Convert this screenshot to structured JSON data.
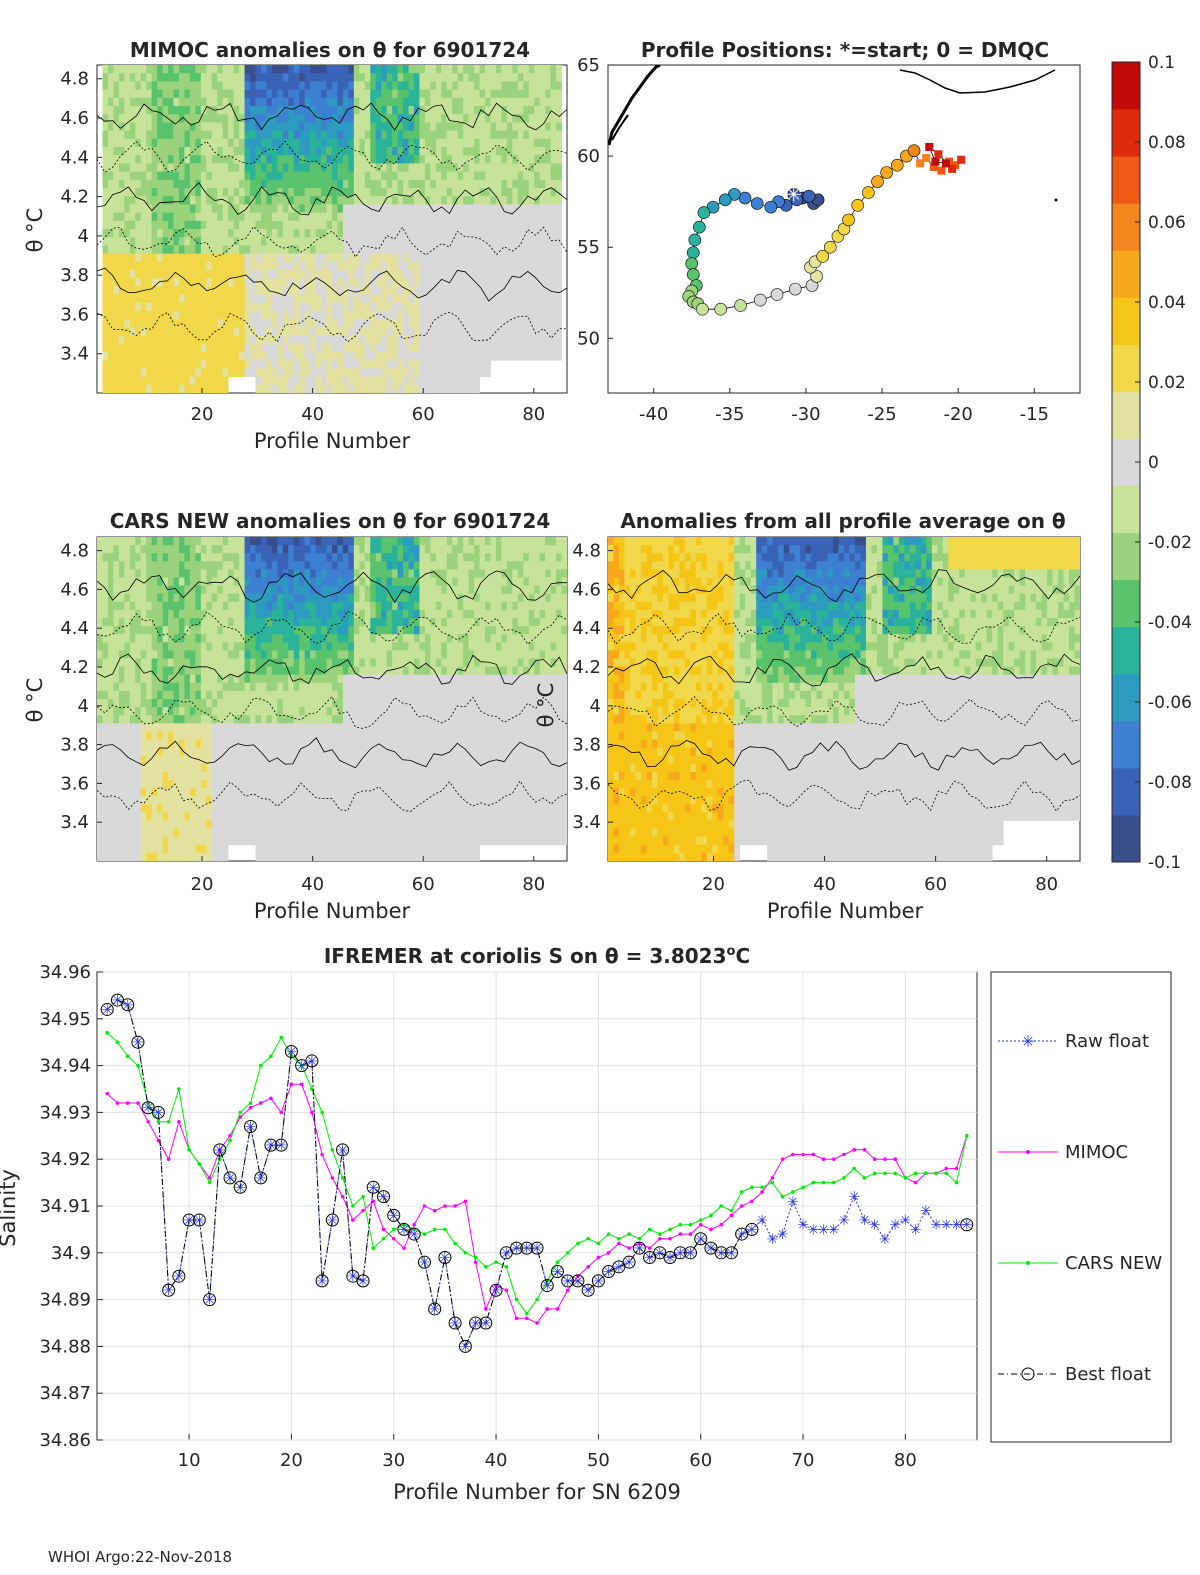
{
  "titles": {
    "p1": "MIMOC anomalies on θ  for 6901724",
    "p2": "Profile Positions: *=start; 0 = DMQC",
    "p3": "CARS NEW anomalies on θ for 6901724",
    "p4": "Anomalies from all profile average on θ",
    "p5_prefix": "IFREMER at coriolis S on θ = 3.8023",
    "p5_suffix": "C"
  },
  "axis_labels": {
    "profile_number": "Profile Number",
    "theta": "θ °C",
    "salinity": "Salinity",
    "profile_number_sn": "Profile Number for SN 6209"
  },
  "footer": "WHOI Argo:22-Nov-2018",
  "colorbar": {
    "ticks": [
      "0.1",
      "0.08",
      "0.06",
      "0.04",
      "0.02",
      "0",
      "-0.02",
      "-0.04",
      "-0.06",
      "-0.08",
      "-0.1"
    ],
    "colors": [
      "#3b4e8c",
      "#3a63b6",
      "#3d7fd0",
      "#2d9bbf",
      "#2bb29a",
      "#59c26d",
      "#9bd27c",
      "#c7e39a",
      "#d9d9d9",
      "#e4e2a0",
      "#f0d84a",
      "#f5c518",
      "#f7a81c",
      "#f5841e",
      "#ee5a14",
      "#de2b0c",
      "#c20a0a"
    ]
  },
  "chart_data": [
    {
      "type": "heatmap",
      "title": "MIMOC anomalies on θ  for 6901724",
      "xlabel": "Profile Number",
      "ylabel": "θ °C",
      "xlim": [
        1,
        86
      ],
      "ylim": [
        3.2,
        4.87
      ],
      "xticks": [
        "20",
        "40",
        "60",
        "80"
      ],
      "yticks": [
        "4.8",
        "4.6",
        "4.4",
        "4.2",
        "4",
        "3.8",
        "3.6",
        "3.4"
      ]
    },
    {
      "type": "scatter",
      "title": "Profile Positions: *=start; 0 = DMQC",
      "xlim": [
        -43,
        -12
      ],
      "ylim": [
        47,
        65
      ],
      "xticks": [
        "-40",
        "-35",
        "-30",
        "-25",
        "-20",
        "-15"
      ],
      "yticks": [
        "65",
        "60",
        "55",
        "50"
      ],
      "track_lon": [
        -30.8,
        -30.2,
        -29.5,
        -29.2,
        -29.8,
        -30.6,
        -31.3,
        -31.8,
        -32.3,
        -33.2,
        -34.0,
        -34.7,
        -35.3,
        -36.1,
        -36.7,
        -37.0,
        -37.3,
        -37.4,
        -37.5,
        -37.4,
        -37.2,
        -37.5,
        -37.7,
        -37.4,
        -37.1,
        -36.8,
        -35.6,
        -34.3,
        -33.0,
        -31.9,
        -30.7,
        -29.6,
        -29.3,
        -29.7,
        -29.4,
        -28.9,
        -28.4,
        -27.9,
        -27.5,
        -27.2,
        -26.6,
        -25.9,
        -25.3,
        -24.7,
        -24.0,
        -23.4,
        -22.9,
        -22.5,
        -22.1,
        -21.6,
        -21.1,
        -20.6,
        -20.2,
        -19.8,
        -20.4,
        -21.3,
        -21.9,
        -21.5,
        -20.8
      ],
      "track_lat": [
        57.9,
        57.7,
        57.4,
        57.6,
        57.8,
        57.6,
        57.3,
        57.5,
        57.2,
        57.4,
        57.7,
        57.9,
        57.6,
        57.2,
        56.9,
        56.1,
        55.4,
        54.7,
        54.1,
        53.5,
        52.9,
        52.6,
        52.3,
        52.0,
        51.9,
        51.6,
        51.6,
        51.8,
        52.1,
        52.4,
        52.7,
        52.9,
        53.4,
        53.9,
        54.2,
        54.5,
        55.0,
        55.6,
        56.0,
        56.5,
        57.3,
        58.0,
        58.6,
        59.1,
        59.5,
        60.0,
        60.3,
        59.6,
        59.9,
        59.4,
        59.2,
        59.7,
        59.5,
        59.8,
        59.3,
        60.1,
        60.5,
        59.7,
        59.6
      ]
    },
    {
      "type": "heatmap",
      "title": "CARS NEW anomalies on θ for 6901724",
      "xlabel": "Profile Number",
      "ylabel": "θ °C",
      "xlim": [
        1,
        86
      ],
      "ylim": [
        3.2,
        4.87
      ],
      "xticks": [
        "20",
        "40",
        "60",
        "80"
      ],
      "yticks": [
        "4.8",
        "4.6",
        "4.4",
        "4.2",
        "4",
        "3.8",
        "3.6",
        "3.4"
      ]
    },
    {
      "type": "heatmap",
      "title": "Anomalies from all profile average on θ",
      "xlabel": "Profile Number",
      "ylabel": "θ °C",
      "xlim": [
        1,
        86
      ],
      "ylim": [
        3.2,
        4.87
      ],
      "xticks": [
        "20",
        "40",
        "60",
        "80"
      ],
      "yticks": [
        "4.8",
        "4.6",
        "4.4",
        "4.2",
        "4",
        "3.8",
        "3.6",
        "3.4"
      ]
    },
    {
      "type": "line",
      "title": "IFREMER at coriolis S on θ = 3.8023°C",
      "xlabel": "Profile Number for SN 6209",
      "ylabel": "Salinity",
      "xlim": [
        1,
        87
      ],
      "ylim": [
        34.86,
        34.96
      ],
      "xticks": [
        "10",
        "20",
        "30",
        "40",
        "50",
        "60",
        "70",
        "80"
      ],
      "yticks": [
        "34.96",
        "34.95",
        "34.94",
        "34.93",
        "34.92",
        "34.91",
        "34.9",
        "34.89",
        "34.88",
        "34.87",
        "34.86"
      ],
      "legend": [
        "Raw float",
        "MIMOC",
        "CARS NEW",
        "Best float"
      ],
      "legend_position": "right-outside",
      "x": [
        2,
        3,
        4,
        5,
        6,
        7,
        8,
        9,
        10,
        11,
        12,
        13,
        14,
        15,
        16,
        17,
        18,
        19,
        20,
        21,
        22,
        23,
        24,
        25,
        26,
        27,
        28,
        29,
        30,
        31,
        32,
        33,
        34,
        35,
        36,
        37,
        38,
        39,
        40,
        41,
        42,
        43,
        44,
        45,
        46,
        47,
        48,
        49,
        50,
        51,
        52,
        53,
        54,
        55,
        56,
        57,
        58,
        59,
        60,
        61,
        62,
        63,
        64,
        65,
        66,
        67,
        68,
        69,
        70,
        71,
        72,
        73,
        74,
        75,
        76,
        77,
        78,
        79,
        80,
        81,
        82,
        83,
        84,
        85,
        86
      ],
      "series": [
        {
          "name": "Raw float",
          "color": "#2233dd",
          "values": [
            34.952,
            34.954,
            34.953,
            34.945,
            34.931,
            34.93,
            34.892,
            34.895,
            34.907,
            34.907,
            34.89,
            34.922,
            34.916,
            34.914,
            34.927,
            34.916,
            34.923,
            34.923,
            34.943,
            34.94,
            34.941,
            34.894,
            34.907,
            34.922,
            34.895,
            34.894,
            34.914,
            34.912,
            34.908,
            34.905,
            34.904,
            34.898,
            34.888,
            34.899,
            34.885,
            34.88,
            34.885,
            34.885,
            34.892,
            34.9,
            34.901,
            34.901,
            34.901,
            34.893,
            34.896,
            34.894,
            34.894,
            34.892,
            34.894,
            34.896,
            34.897,
            34.898,
            34.901,
            34.899,
            34.9,
            34.899,
            34.9,
            34.9,
            34.903,
            34.901,
            34.9,
            34.9,
            34.904,
            34.905,
            34.907,
            34.903,
            34.904,
            34.911,
            34.906,
            34.905,
            34.905,
            34.905,
            34.907,
            34.912,
            34.907,
            34.906,
            34.903,
            34.906,
            34.907,
            34.905,
            34.909,
            34.906,
            34.906,
            34.906,
            34.906
          ]
        },
        {
          "name": "MIMOC",
          "color": "#ff00ff",
          "values": [
            34.934,
            34.932,
            34.932,
            34.932,
            34.928,
            34.924,
            34.92,
            34.928,
            34.922,
            34.919,
            34.916,
            34.922,
            34.925,
            34.929,
            34.931,
            34.932,
            34.933,
            34.93,
            34.936,
            34.936,
            34.93,
            34.921,
            34.916,
            34.912,
            34.907,
            34.909,
            34.911,
            34.905,
            34.903,
            34.901,
            34.906,
            34.91,
            34.909,
            34.91,
            34.91,
            34.911,
            34.898,
            34.888,
            34.893,
            34.892,
            34.886,
            34.886,
            34.885,
            34.888,
            34.888,
            34.892,
            34.895,
            34.897,
            34.899,
            34.9,
            34.902,
            34.901,
            34.902,
            34.901,
            34.903,
            34.903,
            34.904,
            34.904,
            34.906,
            34.905,
            34.906,
            34.908,
            34.91,
            34.911,
            34.913,
            34.916,
            34.92,
            34.921,
            34.921,
            34.921,
            34.92,
            34.92,
            34.921,
            34.922,
            34.922,
            34.92,
            34.92,
            34.92,
            34.916,
            34.915,
            34.917,
            34.917,
            34.918,
            34.918,
            34.925
          ]
        },
        {
          "name": "CARS NEW",
          "color": "#00ee00",
          "values": [
            34.947,
            34.945,
            34.942,
            34.94,
            34.932,
            34.928,
            34.928,
            34.935,
            34.922,
            34.919,
            34.915,
            34.92,
            34.924,
            34.93,
            34.932,
            34.94,
            34.942,
            34.946,
            34.942,
            34.94,
            34.935,
            34.93,
            34.922,
            34.916,
            34.91,
            34.912,
            34.901,
            34.903,
            34.905,
            34.906,
            34.905,
            34.904,
            34.905,
            34.905,
            34.902,
            34.9,
            34.899,
            34.897,
            34.898,
            34.897,
            34.89,
            34.887,
            34.89,
            34.894,
            34.898,
            34.9,
            34.902,
            34.903,
            34.902,
            34.904,
            34.903,
            34.904,
            34.903,
            34.905,
            34.904,
            34.905,
            34.906,
            34.906,
            34.907,
            34.908,
            34.91,
            34.909,
            34.913,
            34.914,
            34.914,
            34.915,
            34.912,
            34.913,
            34.914,
            34.915,
            34.915,
            34.915,
            34.916,
            34.918,
            34.916,
            34.917,
            34.917,
            34.917,
            34.916,
            34.917,
            34.917,
            34.917,
            34.917,
            34.915,
            34.925
          ]
        },
        {
          "name": "Best float",
          "color": "#000000",
          "values": [
            34.952,
            34.954,
            34.953,
            34.945,
            34.931,
            34.93,
            34.892,
            34.895,
            34.907,
            34.907,
            34.89,
            34.922,
            34.916,
            34.914,
            34.927,
            34.916,
            34.923,
            34.923,
            34.943,
            34.94,
            34.941,
            34.894,
            34.907,
            34.922,
            34.895,
            34.894,
            34.914,
            34.912,
            34.908,
            34.905,
            34.904,
            34.898,
            34.888,
            34.899,
            34.885,
            34.88,
            34.885,
            34.885,
            34.892,
            34.9,
            34.901,
            34.901,
            34.901,
            34.893,
            34.896,
            34.894,
            34.894,
            34.892,
            34.894,
            34.896,
            34.897,
            34.898,
            34.901,
            34.899,
            34.9,
            34.899,
            34.9,
            34.9,
            34.903,
            34.901,
            34.9,
            34.9,
            34.904,
            34.905,
            null,
            null,
            null,
            null,
            null,
            null,
            null,
            null,
            null,
            null,
            null,
            null,
            null,
            null,
            null,
            null,
            null,
            null,
            null,
            null,
            34.906
          ]
        }
      ]
    }
  ]
}
